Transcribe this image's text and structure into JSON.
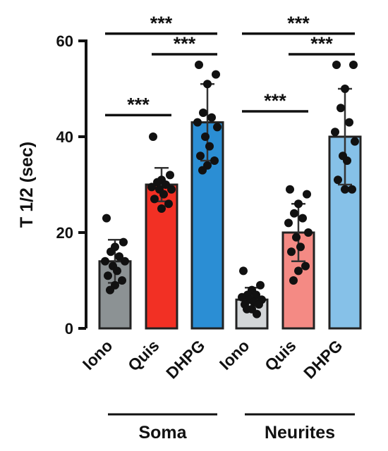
{
  "chart_data": {
    "type": "bar",
    "ylabel": "T 1/2 (sec)",
    "ylim": [
      0,
      60
    ],
    "yticks": [
      "0",
      "20",
      "40",
      "60"
    ],
    "categories": [
      "Iono",
      "Quis",
      "DHPG",
      "Iono",
      "Quis",
      "DHPG"
    ],
    "groups": [
      {
        "label": "Soma",
        "categories": [
          0,
          1,
          2
        ]
      },
      {
        "label": "Neurites",
        "categories": [
          3,
          4,
          5
        ]
      }
    ],
    "bars": [
      {
        "label": "Iono",
        "group": "Soma",
        "mean": 14,
        "sd": 4.5,
        "color": "#8c9294",
        "points": [
          23,
          18,
          17,
          16,
          15,
          14,
          14,
          13,
          12,
          11,
          10,
          9,
          8
        ]
      },
      {
        "label": "Quis",
        "group": "Soma",
        "mean": 30,
        "sd": 3.5,
        "color": "#f23024",
        "points": [
          40,
          32,
          31,
          30.5,
          30,
          29.5,
          29,
          29,
          28,
          27,
          26,
          25
        ]
      },
      {
        "label": "DHPG",
        "group": "Soma",
        "mean": 43,
        "sd": 8,
        "color": "#2b8ed4",
        "points": [
          55,
          53,
          51,
          45,
          44,
          43,
          42,
          40,
          38,
          36,
          35,
          34,
          33
        ]
      },
      {
        "label": "Iono",
        "group": "Neurites",
        "mean": 6,
        "sd": 2.5,
        "color": "#d3d6d8",
        "points": [
          12,
          9,
          8,
          7,
          7,
          6.5,
          6,
          6,
          5.5,
          5,
          5,
          4,
          4,
          3
        ]
      },
      {
        "label": "Quis",
        "group": "Neurites",
        "mean": 20,
        "sd": 6,
        "color": "#f48a84",
        "points": [
          29,
          28,
          26,
          24,
          23,
          22,
          20,
          19,
          17,
          16,
          13,
          12,
          10
        ]
      },
      {
        "label": "DHPG",
        "group": "Neurites",
        "mean": 40,
        "sd": 10,
        "color": "#86c1e8",
        "points": [
          55,
          55,
          50,
          46,
          43,
          41,
          39,
          36,
          35,
          31,
          29,
          29
        ]
      }
    ],
    "significance": [
      {
        "from": 0,
        "to": 2,
        "label": "***",
        "y": 61.5
      },
      {
        "from": 1,
        "to": 2,
        "label": "***",
        "y": 57.2
      },
      {
        "from": 0,
        "to": 1,
        "label": "***",
        "y": 44.5
      },
      {
        "from": 3,
        "to": 5,
        "label": "***",
        "y": 61.5
      },
      {
        "from": 4,
        "to": 5,
        "label": "***",
        "y": 57.2
      },
      {
        "from": 3,
        "to": 4,
        "label": "***",
        "y": 45.3
      }
    ]
  }
}
